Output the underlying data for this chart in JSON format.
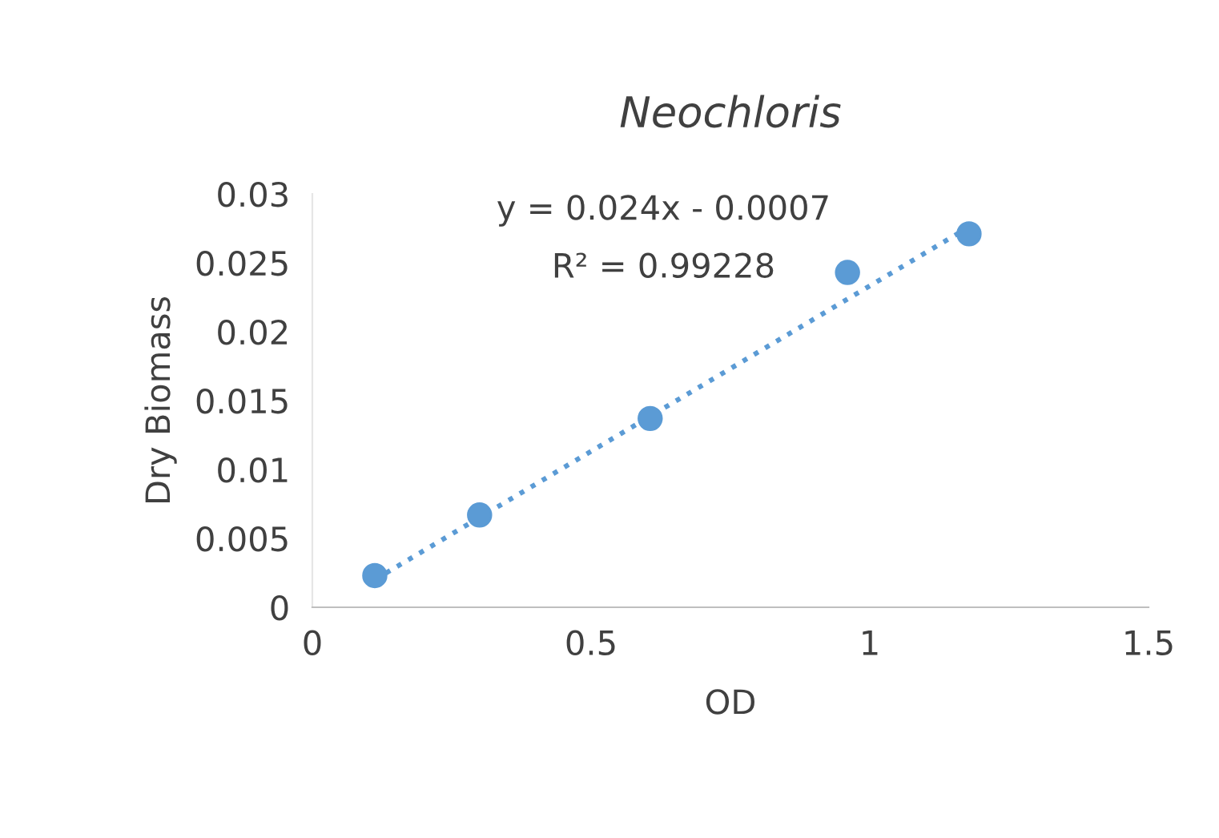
{
  "chart_data": {
    "type": "scatter",
    "title": "Neochloris",
    "xlabel": "OD",
    "ylabel": "Dry Biomass",
    "series": [
      {
        "color": "#5b9bd5",
        "x": [
          0.112,
          0.3,
          0.606,
          0.96,
          1.178
        ],
        "values": [
          0.0023,
          0.0067,
          0.0137,
          0.0243,
          0.0271
        ],
        "marker": "circle"
      },
      {
        "type": "line",
        "color": "#5b9bd5",
        "x": [
          0.112,
          1.178
        ],
        "values": [
          0.002,
          0.0276
        ],
        "line_style": "dotted",
        "marker": "none"
      }
    ],
    "annotations": [
      "y = 0.024x - 0.0007",
      "R² = 0.99228"
    ],
    "xlim": [
      0,
      1.5
    ],
    "xticks": [
      0,
      0.5,
      1,
      1.5
    ],
    "ylim": [
      0,
      0.03
    ],
    "yticks": [
      0,
      0.005,
      0.01,
      0.015,
      0.02,
      0.025,
      0.03
    ],
    "grid": false,
    "legend": false
  }
}
